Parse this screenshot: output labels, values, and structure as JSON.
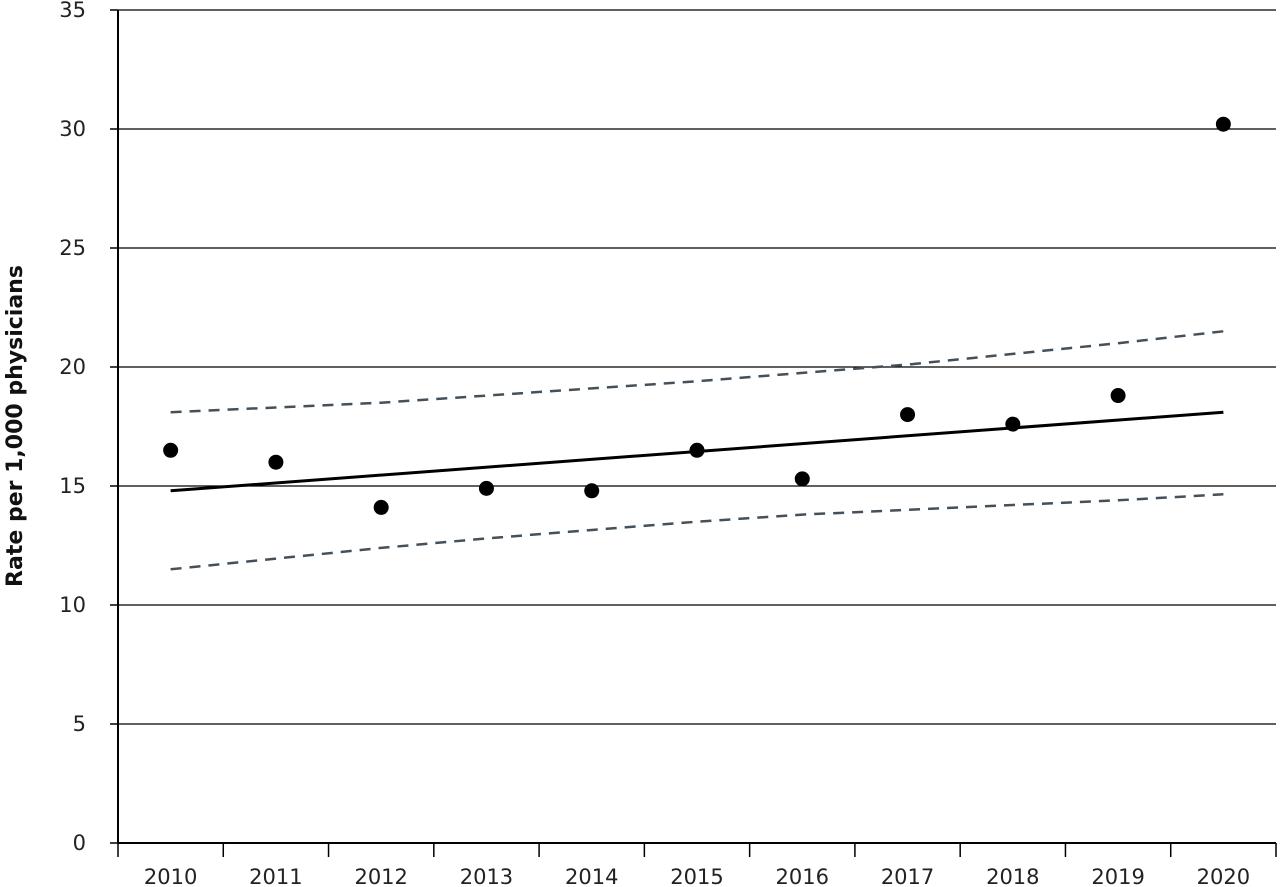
{
  "chart_data": {
    "type": "scatter",
    "title": "",
    "xlabel": "",
    "ylabel": "Rate per 1,000 physicians",
    "x": [
      2010,
      2011,
      2012,
      2013,
      2014,
      2015,
      2016,
      2017,
      2018,
      2019,
      2020
    ],
    "xlim": [
      2009.5,
      2020.5
    ],
    "ylim": [
      0,
      35
    ],
    "yticks": [
      0,
      5,
      10,
      15,
      20,
      25,
      30,
      35
    ],
    "grid": true,
    "legend": "none",
    "series": [
      {
        "kind": "points",
        "values": [
          16.5,
          16.0,
          14.1,
          14.9,
          14.8,
          16.5,
          15.3,
          18.0,
          17.6,
          18.8,
          30.2
        ],
        "color": "#000000"
      },
      {
        "kind": "trend-line",
        "x": [
          2010,
          2020
        ],
        "values": [
          14.8,
          18.1
        ],
        "color": "#000000"
      },
      {
        "kind": "upper-bound",
        "x": [
          2010,
          2011,
          2012,
          2013,
          2014,
          2015,
          2016,
          2017,
          2018,
          2019,
          2020
        ],
        "values": [
          18.1,
          18.3,
          18.5,
          18.8,
          19.1,
          19.4,
          19.75,
          20.1,
          20.55,
          21.0,
          21.5
        ],
        "color": "#44505a"
      },
      {
        "kind": "lower-bound",
        "x": [
          2010,
          2011,
          2012,
          2013,
          2014,
          2015,
          2016,
          2017,
          2018,
          2019,
          2020
        ],
        "values": [
          11.5,
          11.95,
          12.4,
          12.8,
          13.15,
          13.5,
          13.8,
          14.0,
          14.2,
          14.4,
          14.65
        ],
        "color": "#44505a"
      }
    ]
  }
}
